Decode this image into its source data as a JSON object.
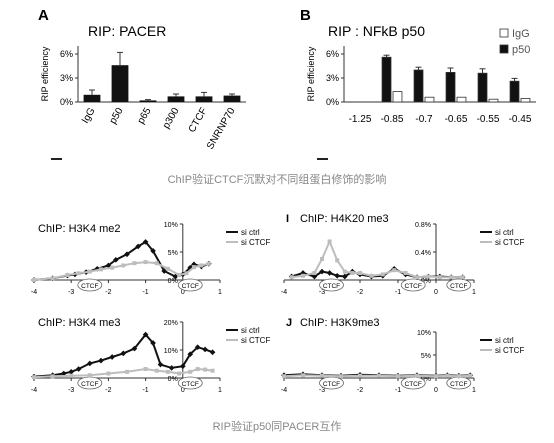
{
  "captions": {
    "top": "ChIP验证CTCF沉默对不同组蛋白修饰的影响",
    "bottom": "RIP验证p50同PACER互作"
  },
  "colors": {
    "black_series": "#111111",
    "gray_series": "#bdbdbd",
    "white_bar": "#ffffff",
    "caption": "#888888"
  },
  "chart_data": [
    {
      "id": "A",
      "type": "bar",
      "panel_letter": "A",
      "title": "RIP: PACER",
      "ylabel": "RIP efficiency",
      "yticks": [
        "0%",
        "3%",
        "6%"
      ],
      "ylim": [
        0,
        7
      ],
      "categories": [
        "IgG",
        "p50",
        "p65",
        "p300",
        "CTCF",
        "SNRNP70"
      ],
      "values": [
        0.9,
        4.6,
        0.2,
        0.7,
        0.7,
        0.8
      ],
      "errors": [
        0.6,
        1.6,
        0.1,
        0.3,
        0.5,
        0.2
      ]
    },
    {
      "id": "B",
      "type": "bar",
      "panel_letter": "B",
      "title": "RIP : NFkB p50",
      "ylabel": "RIP efficiency",
      "yticks": [
        "0%",
        "3%",
        "6%"
      ],
      "ylim": [
        0,
        7
      ],
      "categories": [
        "-1.25",
        "-0.85",
        "-0.7",
        "-0.65",
        "-0.55",
        "-0.45"
      ],
      "legend": [
        "IgG",
        "p50"
      ],
      "legend_position": "top-right",
      "series": [
        {
          "name": "IgG",
          "values": [
            0,
            1.3,
            0.6,
            0.6,
            0.35,
            0.45
          ]
        },
        {
          "name": "p50",
          "values": [
            0,
            5.6,
            4.0,
            3.7,
            3.6,
            2.6
          ]
        }
      ],
      "errors": [
        0,
        0.25,
        0.35,
        0.55,
        0.55,
        0.35
      ]
    },
    {
      "id": "H1",
      "type": "line",
      "title": "ChIP: H3K4 me2",
      "yticks": [
        "0%",
        "5%",
        "10%"
      ],
      "ylim": [
        0,
        10
      ],
      "xlim": [
        -4,
        1
      ],
      "xticks": [
        "-4",
        "-3",
        "-2",
        "-1",
        "0",
        "1"
      ],
      "markers": [
        "CTCF",
        "CTCF"
      ],
      "legend": [
        "si ctrl",
        "si CTCF"
      ],
      "series": [
        {
          "name": "si ctrl",
          "x": [
            -4,
            -3.5,
            -3.1,
            -2.9,
            -2.6,
            -2.3,
            -2.0,
            -1.8,
            -1.5,
            -1.2,
            -1.0,
            -0.8,
            -0.5,
            -0.2,
            0,
            0.2,
            0.3,
            0.5,
            0.7
          ],
          "y": [
            0,
            0.3,
            0.8,
            1.0,
            1.4,
            2.0,
            2.6,
            3.6,
            4.6,
            6.0,
            6.8,
            5.2,
            1.6,
            0.6,
            1.0,
            2.2,
            2.8,
            2.4,
            2.9
          ]
        },
        {
          "name": "si CTCF",
          "x": [
            -4,
            -3.5,
            -3.1,
            -2.8,
            -2.5,
            -2.2,
            -1.9,
            -1.6,
            -1.3,
            -1.0,
            -0.7,
            -0.4,
            -0.1,
            0.1,
            0.3,
            0.5,
            0.7
          ],
          "y": [
            0,
            0.3,
            0.9,
            1.2,
            1.5,
            1.9,
            2.2,
            2.6,
            3.0,
            3.2,
            3.0,
            2.0,
            0.9,
            1.2,
            2.3,
            2.6,
            2.9
          ]
        }
      ]
    },
    {
      "id": "I",
      "type": "line",
      "panel_letter": "I",
      "title": "ChIP: H4K20 me3",
      "yticks": [
        "0.0%",
        "0.4%",
        "0.8%"
      ],
      "ylim": [
        0,
        0.8
      ],
      "xlim": [
        -4,
        1
      ],
      "xticks": [
        "-4",
        "-3",
        "-2",
        "-1",
        "0",
        "1"
      ],
      "markers": [
        "CTCF",
        "CTCF",
        "CTCF"
      ],
      "legend": [
        "si ctrl",
        "si CTCF"
      ],
      "series": [
        {
          "name": "si ctrl",
          "x": [
            -3.8,
            -3.5,
            -3.2,
            -3.0,
            -2.8,
            -2.6,
            -2.4,
            -2.2,
            -2.0,
            -1.7,
            -1.4,
            -1.1,
            -0.8,
            -0.5,
            -0.2,
            0.1,
            0.4,
            0.7
          ],
          "y": [
            0.05,
            0.1,
            0.05,
            0.12,
            0.1,
            0.06,
            0.05,
            0.12,
            0.08,
            0.05,
            0.06,
            0.16,
            0.08,
            0.04,
            0.05,
            0.05,
            0.04,
            0.04
          ]
        },
        {
          "name": "si CTCF",
          "x": [
            -3.8,
            -3.5,
            -3.2,
            -3.0,
            -2.8,
            -2.6,
            -2.4,
            -2.2,
            -2.0,
            -1.7,
            -1.4,
            -1.1,
            -0.8,
            -0.5,
            -0.2,
            0.1,
            0.4,
            0.7
          ],
          "y": [
            0.04,
            0.06,
            0.1,
            0.3,
            0.55,
            0.28,
            0.12,
            0.1,
            0.1,
            0.06,
            0.08,
            0.14,
            0.1,
            0.04,
            0.05,
            0.04,
            0.04,
            0.04
          ]
        }
      ]
    },
    {
      "id": "H2",
      "type": "line",
      "title": "ChIP: H3K4 me3",
      "yticks": [
        "0%",
        "10%",
        "20%"
      ],
      "ylim": [
        0,
        20
      ],
      "xlim": [
        -4,
        1
      ],
      "xticks": [
        "-4",
        "-3",
        "-2",
        "-1",
        "0",
        "1"
      ],
      "markers": [
        "CTCF",
        "CTCF"
      ],
      "legend": [
        "si ctrl",
        "si CTCF"
      ],
      "series": [
        {
          "name": "si ctrl",
          "x": [
            -4,
            -3.5,
            -3.2,
            -3.0,
            -2.8,
            -2.5,
            -2.2,
            -1.9,
            -1.6,
            -1.3,
            -1.0,
            -0.8,
            -0.6,
            -0.3,
            0,
            0.2,
            0.4,
            0.6,
            0.8
          ],
          "y": [
            0.5,
            1.0,
            1.6,
            2.2,
            3.2,
            5.2,
            6.2,
            7.5,
            8.8,
            10.5,
            15.5,
            12.5,
            4.8,
            3.6,
            4.2,
            8.5,
            11.0,
            10.2,
            9.2
          ]
        },
        {
          "name": "si CTCF",
          "x": [
            -4,
            -3.5,
            -3.0,
            -2.5,
            -2.0,
            -1.5,
            -1.0,
            -0.7,
            -0.4,
            -0.1,
            0.2,
            0.4,
            0.6,
            0.8
          ],
          "y": [
            0.3,
            0.6,
            0.8,
            1.0,
            1.6,
            2.2,
            3.2,
            2.6,
            2.2,
            1.6,
            2.2,
            3.2,
            3.0,
            2.6
          ]
        }
      ]
    },
    {
      "id": "J",
      "type": "line",
      "panel_letter": "J",
      "title": "ChIP: H3K9me3",
      "yticks": [
        "0%",
        "5%",
        "10%"
      ],
      "ylim": [
        0,
        10
      ],
      "xlim": [
        -4,
        1
      ],
      "xticks": [
        "-4",
        "-3",
        "-2",
        "-1",
        "0",
        "1"
      ],
      "markers": [
        "CTCF",
        "CTCF",
        "CTCF"
      ],
      "legend": [
        "si ctrl",
        "si CTCF"
      ],
      "series": [
        {
          "name": "si ctrl",
          "x": [
            -4,
            -3.5,
            -3.0,
            -2.5,
            -2.0,
            -1.5,
            -1.0,
            -0.5,
            0,
            0.3,
            0.6,
            0.9
          ],
          "y": [
            0.6,
            0.8,
            0.6,
            0.5,
            0.7,
            0.6,
            0.5,
            0.6,
            0.5,
            0.6,
            0.5,
            0.6
          ]
        },
        {
          "name": "si CTCF",
          "x": [
            -4,
            -3.5,
            -3.0,
            -2.5,
            -2.0,
            -1.5,
            -1.0,
            -0.5,
            0,
            0.3,
            0.6,
            0.9
          ],
          "y": [
            0.4,
            0.6,
            0.5,
            0.4,
            0.5,
            0.5,
            0.4,
            0.5,
            0.4,
            0.5,
            0.4,
            0.5
          ]
        }
      ]
    }
  ]
}
